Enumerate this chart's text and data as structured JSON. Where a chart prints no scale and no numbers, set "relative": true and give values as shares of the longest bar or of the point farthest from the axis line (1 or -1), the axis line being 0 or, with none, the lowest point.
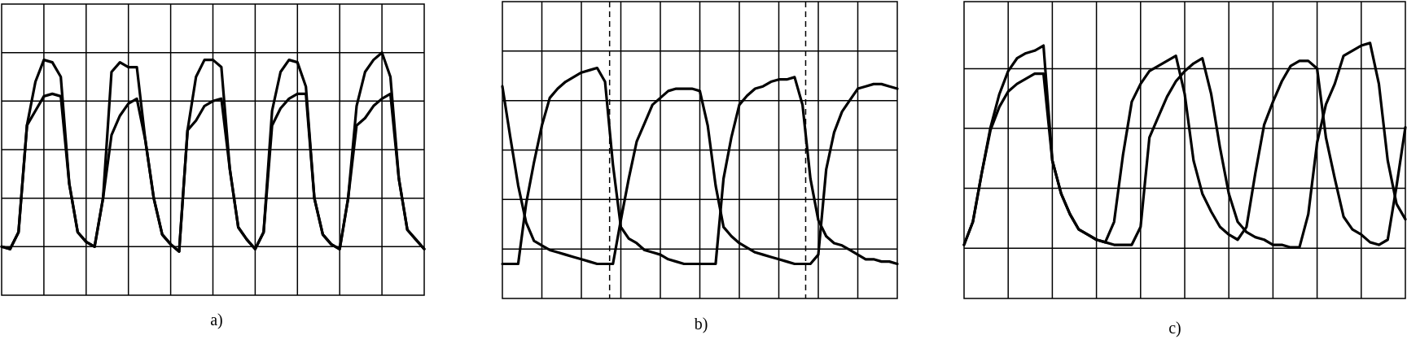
{
  "chart_data": [
    {
      "type": "line",
      "title": "a)",
      "relative": true,
      "grid": true,
      "categories": [
        null,
        null,
        null,
        null,
        null,
        null,
        null,
        null,
        null,
        null,
        null,
        null,
        null,
        null,
        null,
        null,
        null,
        null,
        null,
        null,
        null,
        null,
        null,
        null,
        null,
        null,
        null,
        null,
        null,
        null,
        null,
        null,
        null,
        null,
        null,
        null,
        null,
        null,
        null,
        null,
        null,
        null,
        null,
        null,
        null,
        null,
        null,
        null,
        null,
        null,
        null
      ],
      "series": [
        {
          "color": "#000000",
          "values": [
            0.2,
            0.19,
            0.26,
            0.7,
            0.88,
            0.97,
            0.96,
            0.9,
            0.46,
            0.26,
            0.22,
            0.2,
            0.4,
            0.92,
            0.96,
            0.94,
            0.94,
            0.64,
            0.4,
            0.25,
            0.21,
            0.18,
            0.68,
            0.9,
            0.97,
            0.97,
            0.94,
            0.52,
            0.28,
            0.23,
            0.19,
            0.26,
            0.76,
            0.92,
            0.97,
            0.96,
            0.86,
            0.4,
            0.25,
            0.21,
            0.19,
            0.4,
            0.78,
            0.92,
            0.97,
            1,
            0.9,
            0.48,
            0.27,
            0.23,
            0.19
          ]
        },
        {
          "color": "#000000",
          "values": [
            0.2,
            0.19,
            0.26,
            0.7,
            0.76,
            0.82,
            0.83,
            0.82,
            0.46,
            0.26,
            0.22,
            0.2,
            0.4,
            0.66,
            0.74,
            0.79,
            0.81,
            0.64,
            0.4,
            0.25,
            0.21,
            0.18,
            0.68,
            0.72,
            0.78,
            0.8,
            0.81,
            0.52,
            0.28,
            0.23,
            0.19,
            0.26,
            0.7,
            0.77,
            0.81,
            0.83,
            0.83,
            0.4,
            0.25,
            0.21,
            0.19,
            0.4,
            0.7,
            0.73,
            0.78,
            0.81,
            0.83,
            0.48,
            0.27,
            0.23,
            0.19
          ]
        }
      ]
    },
    {
      "type": "line",
      "title": "b)",
      "relative": true,
      "grid": true,
      "categories": [
        null,
        null,
        null,
        null,
        null,
        null,
        null,
        null,
        null,
        null,
        null,
        null,
        null,
        null,
        null,
        null,
        null,
        null,
        null,
        null,
        null,
        null,
        null,
        null,
        null,
        null,
        null,
        null,
        null,
        null,
        null,
        null,
        null,
        null,
        null,
        null,
        null,
        null,
        null,
        null,
        null,
        null,
        null,
        null,
        null,
        null,
        null,
        null,
        null,
        null,
        null
      ],
      "series": [
        {
          "color": "#000000",
          "values": [
            0.15,
            0.15,
            0.15,
            0.41,
            0.59,
            0.75,
            0.87,
            0.91,
            0.94,
            0.96,
            0.98,
            0.99,
            1,
            0.94,
            0.58,
            0.31,
            0.26,
            0.24,
            0.21,
            0.2,
            0.19,
            0.17,
            0.16,
            0.15,
            0.15,
            0.15,
            0.15,
            0.15,
            0.52,
            0.7,
            0.84,
            0.88,
            0.91,
            0.92,
            0.94,
            0.95,
            0.95,
            0.96,
            0.84,
            0.52,
            0.34,
            0.27,
            0.24,
            0.23,
            0.21,
            0.19,
            0.17,
            0.17,
            0.16,
            0.16,
            0.15
          ]
        },
        {
          "color": "#000000",
          "values": [
            0.92,
            0.7,
            0.49,
            0.33,
            0.25,
            0.23,
            0.21,
            0.2,
            0.19,
            0.18,
            0.17,
            0.16,
            0.15,
            0.15,
            0.15,
            0.34,
            0.52,
            0.68,
            0.76,
            0.84,
            0.87,
            0.9,
            0.91,
            0.91,
            0.91,
            0.9,
            0.75,
            0.49,
            0.31,
            0.27,
            0.24,
            0.22,
            0.2,
            0.19,
            0.18,
            0.17,
            0.16,
            0.15,
            0.15,
            0.15,
            0.19,
            0.56,
            0.72,
            0.81,
            0.86,
            0.91,
            0.92,
            0.93,
            0.93,
            0.92,
            0.91
          ]
        }
      ]
    },
    {
      "type": "line",
      "title": "c)",
      "relative": true,
      "grid": true,
      "categories": [
        null,
        null,
        null,
        null,
        null,
        null,
        null,
        null,
        null,
        null,
        null,
        null,
        null,
        null,
        null,
        null,
        null,
        null,
        null,
        null,
        null,
        null,
        null,
        null,
        null,
        null,
        null,
        null,
        null,
        null,
        null,
        null,
        null,
        null,
        null,
        null,
        null,
        null,
        null,
        null,
        null,
        null,
        null,
        null,
        null,
        null,
        null,
        null,
        null,
        null,
        null
      ],
      "series": [
        {
          "color": "#000000",
          "values": [
            0.21,
            0.3,
            0.49,
            0.67,
            0.8,
            0.89,
            0.94,
            0.96,
            0.97,
            0.99,
            0.54,
            0.41,
            0.33,
            0.27,
            0.25,
            0.23,
            0.22,
            0.3,
            0.56,
            0.77,
            0.84,
            0.89,
            0.91,
            0.93,
            0.95,
            0.8,
            0.54,
            0.41,
            0.34,
            0.28,
            0.25,
            0.23,
            0.28,
            0.49,
            0.68,
            0.77,
            0.85,
            0.91,
            0.93,
            0.93,
            0.9,
            0.63,
            0.47,
            0.32,
            0.27,
            0.25,
            0.22,
            0.21,
            0.23,
            0.44,
            0.67
          ]
        },
        {
          "color": "#000000",
          "values": [
            0.21,
            0.3,
            0.49,
            0.66,
            0.75,
            0.81,
            0.84,
            0.86,
            0.88,
            0.88,
            0.54,
            0.41,
            0.33,
            0.27,
            0.25,
            0.23,
            0.22,
            0.21,
            0.21,
            0.21,
            0.28,
            0.63,
            0.71,
            0.79,
            0.85,
            0.89,
            0.92,
            0.94,
            0.8,
            0.59,
            0.41,
            0.3,
            0.26,
            0.24,
            0.23,
            0.21,
            0.21,
            0.2,
            0.2,
            0.33,
            0.61,
            0.76,
            0.84,
            0.95,
            0.97,
            0.99,
            1,
            0.84,
            0.54,
            0.37,
            0.31
          ]
        }
      ]
    }
  ]
}
